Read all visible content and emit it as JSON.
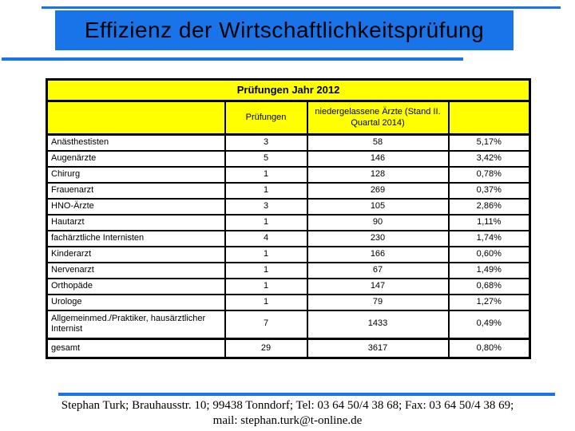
{
  "slide": {
    "title": "Effizienz der Wirtschaftlichkeitsprüfung",
    "footer_line1": "Stephan Turk; Brauhausstr. 10; 99438 Tonndorf; Tel: 03 64 50/4 38 68; Fax: 03 64 50/4 38 69;",
    "footer_line2": "mail: stephan.turk@t-online.de"
  },
  "colors": {
    "accent_blue": "#1874E8",
    "header_yellow": "#FFFF00",
    "border_black": "#000000"
  },
  "table": {
    "title": "Prüfungen Jahr 2012",
    "columns": [
      "",
      "Prüfungen",
      "niedergelassene Ärzte (Stand II. Quartal 2014)",
      ""
    ],
    "rows": [
      {
        "label": "Anästhestisten",
        "pruefungen": "3",
        "aerzte": "58",
        "quote": "5,17%"
      },
      {
        "label": "Augenärzte",
        "pruefungen": "5",
        "aerzte": "146",
        "quote": "3,42%"
      },
      {
        "label": "Chirurg",
        "pruefungen": "1",
        "aerzte": "128",
        "quote": "0,78%"
      },
      {
        "label": "Frauenarzt",
        "pruefungen": "1",
        "aerzte": "269",
        "quote": "0,37%"
      },
      {
        "label": "HNO-Ärzte",
        "pruefungen": "3",
        "aerzte": "105",
        "quote": "2,86%"
      },
      {
        "label": "Hautarzt",
        "pruefungen": "1",
        "aerzte": "90",
        "quote": "1,11%"
      },
      {
        "label": "fachärztliche Internisten",
        "pruefungen": "4",
        "aerzte": "230",
        "quote": "1,74%"
      },
      {
        "label": "Kinderarzt",
        "pruefungen": "1",
        "aerzte": "166",
        "quote": "0,60%"
      },
      {
        "label": "Nervenarzt",
        "pruefungen": "1",
        "aerzte": "67",
        "quote": "1,49%"
      },
      {
        "label": "Orthopäde",
        "pruefungen": "1",
        "aerzte": "147",
        "quote": "0,68%"
      },
      {
        "label": "Urologe",
        "pruefungen": "1",
        "aerzte": "79",
        "quote": "1,27%"
      },
      {
        "label": "Allgemeinmed./Praktiker, hausärztlicher Internist",
        "pruefungen": "7",
        "aerzte": "1433",
        "quote": "0,49%",
        "tall": true
      },
      {
        "label": "gesamt",
        "pruefungen": "29",
        "aerzte": "3617",
        "quote": "0,80%",
        "total": true
      }
    ]
  }
}
